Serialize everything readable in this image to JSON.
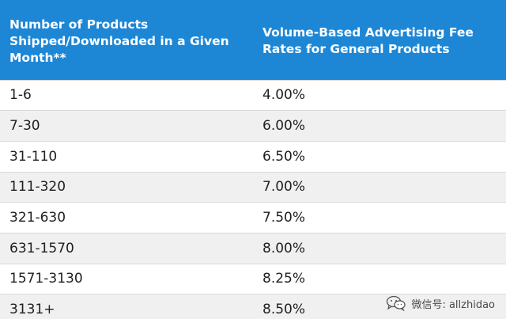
{
  "table": {
    "headers": [
      "Number of Products Shipped/Downloaded in a Given Month**",
      "Volume-Based Advertising Fee Rates for General Products"
    ],
    "rows": [
      {
        "range": "1-6",
        "rate": "4.00%"
      },
      {
        "range": "7-30",
        "rate": "6.00%"
      },
      {
        "range": "31-110",
        "rate": "6.50%"
      },
      {
        "range": "111-320",
        "rate": "7.00%"
      },
      {
        "range": "321-630",
        "rate": "7.50%"
      },
      {
        "range": "631-1570",
        "rate": "8.00%"
      },
      {
        "range": "1571-3130",
        "rate": "8.25%"
      },
      {
        "range": "3131+",
        "rate": "8.50%"
      }
    ]
  },
  "watermark": {
    "icon": "wechat-icon",
    "text": "微信号: allzhidao"
  },
  "colors": {
    "header_bg": "#1d87d6",
    "stripe": "#f0f0f0"
  }
}
